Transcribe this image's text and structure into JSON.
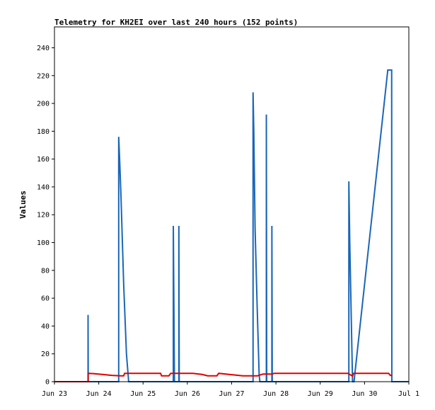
{
  "chart_data": {
    "type": "line",
    "title": "Telemetry for KH2EI over last 240 hours (152 points)",
    "xlabel": "",
    "ylabel": "Values",
    "x_range_hours": [
      0,
      192
    ],
    "ylim": [
      0,
      255
    ],
    "y_ticks": [
      0,
      20,
      40,
      60,
      80,
      100,
      120,
      140,
      160,
      180,
      200,
      220,
      240
    ],
    "x_ticks": [
      {
        "label": "Jun 23",
        "hour": 0
      },
      {
        "label": "Jun 24",
        "hour": 24
      },
      {
        "label": "Jun 25",
        "hour": 48
      },
      {
        "label": "Jun 26",
        "hour": 72
      },
      {
        "label": "Jun 27",
        "hour": 96
      },
      {
        "label": "Jun 28",
        "hour": 120
      },
      {
        "label": "Jun 29",
        "hour": 144
      },
      {
        "label": "Jun 30",
        "hour": 168
      },
      {
        "label": "Jul 1",
        "hour": 192
      }
    ],
    "grid": false,
    "series": [
      {
        "color": "#1a66b8",
        "points": [
          [
            0,
            0
          ],
          [
            18.2,
            0
          ],
          [
            18.2,
            48
          ],
          [
            18.3,
            0
          ],
          [
            34.8,
            0
          ],
          [
            34.8,
            176
          ],
          [
            35.3,
            160
          ],
          [
            36.0,
            135
          ],
          [
            37.5,
            70
          ],
          [
            39.0,
            20
          ],
          [
            40.2,
            0
          ],
          [
            64.4,
            0
          ],
          [
            64.4,
            112
          ],
          [
            64.7,
            56
          ],
          [
            65.0,
            0
          ],
          [
            67.4,
            0
          ],
          [
            67.4,
            112
          ],
          [
            67.6,
            0
          ],
          [
            107.6,
            0
          ],
          [
            107.6,
            208
          ],
          [
            108.0,
            180
          ],
          [
            108.7,
            110
          ],
          [
            109.8,
            55
          ],
          [
            110.9,
            5
          ],
          [
            111.3,
            0
          ],
          [
            114.8,
            0
          ],
          [
            114.8,
            192
          ],
          [
            115.0,
            0
          ],
          [
            117.8,
            0
          ],
          [
            117.8,
            112
          ],
          [
            118.0,
            0
          ],
          [
            159.5,
            0
          ],
          [
            159.5,
            144
          ],
          [
            160.0,
            100
          ],
          [
            161.5,
            0
          ],
          [
            162.3,
            0
          ],
          [
            180.6,
            224
          ],
          [
            182.7,
            224
          ],
          [
            182.8,
            0
          ],
          [
            192,
            0
          ]
        ]
      },
      {
        "color": "#e00000",
        "points": [
          [
            0,
            0
          ],
          [
            18.2,
            0
          ],
          [
            18.2,
            6
          ],
          [
            21,
            5.8
          ],
          [
            26,
            5.2
          ],
          [
            31,
            4.5
          ],
          [
            36,
            4.2
          ],
          [
            37.5,
            4.2
          ],
          [
            38,
            6
          ],
          [
            52,
            6
          ],
          [
            55,
            6
          ],
          [
            57.5,
            6
          ],
          [
            58,
            4.2
          ],
          [
            62,
            4.2
          ],
          [
            63,
            6
          ],
          [
            75,
            6
          ],
          [
            80,
            5.2
          ],
          [
            83,
            4.2
          ],
          [
            88,
            4.2
          ],
          [
            89,
            6
          ],
          [
            96,
            5
          ],
          [
            102,
            4.2
          ],
          [
            110,
            4.2
          ],
          [
            113,
            5.5
          ],
          [
            116,
            5.5
          ],
          [
            118,
            5.5
          ],
          [
            119,
            6
          ],
          [
            159,
            6
          ],
          [
            161.5,
            4
          ],
          [
            162,
            6
          ],
          [
            181,
            6
          ],
          [
            182,
            4.5
          ],
          [
            183,
            4.5
          ]
        ]
      }
    ]
  }
}
